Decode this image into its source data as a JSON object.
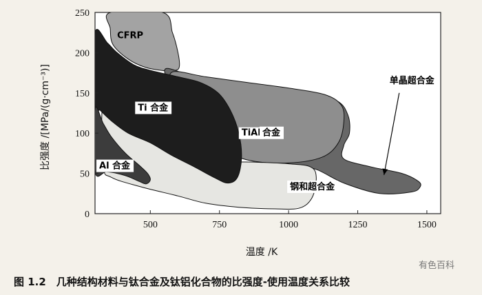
{
  "chart_data": {
    "type": "area",
    "xlabel": "温度 /K",
    "ylabel": "比强度 /[MPa/(g·cm⁻³)]",
    "xlim": [
      300,
      1550
    ],
    "ylim": [
      0,
      250
    ],
    "xticks": [
      500,
      750,
      1000,
      1250,
      1500
    ],
    "yticks": [
      0,
      50,
      100,
      150,
      200,
      250
    ],
    "grid": false,
    "regions": [
      {
        "name": "CFRP",
        "color": "#a3a3a3",
        "boundary": [
          [
            355,
            250
          ],
          [
            545,
            250
          ],
          [
            580,
            225
          ],
          [
            600,
            200
          ],
          [
            605,
            183
          ],
          [
            590,
            178
          ],
          [
            540,
            178
          ],
          [
            480,
            182
          ],
          [
            420,
            192
          ],
          [
            365,
            210
          ],
          [
            355,
            230
          ]
        ]
      },
      {
        "name": "单晶超合金",
        "color": "#676767",
        "boundary": [
          [
            555,
            180
          ],
          [
            650,
            172
          ],
          [
            800,
            165
          ],
          [
            950,
            155
          ],
          [
            1060,
            150
          ],
          [
            1175,
            140
          ],
          [
            1215,
            122
          ],
          [
            1220,
            100
          ],
          [
            1200,
            85
          ],
          [
            1200,
            68
          ],
          [
            1300,
            58
          ],
          [
            1410,
            50
          ],
          [
            1470,
            40
          ],
          [
            1475,
            33
          ],
          [
            1445,
            27
          ],
          [
            1330,
            25
          ],
          [
            1200,
            38
          ],
          [
            1100,
            55
          ],
          [
            1020,
            60
          ],
          [
            900,
            75
          ],
          [
            780,
            98
          ],
          [
            660,
            132
          ],
          [
            580,
            158
          ]
        ]
      },
      {
        "name": "TiAl 合金",
        "color": "#8e8e8e",
        "boundary": [
          [
            580,
            176
          ],
          [
            700,
            170
          ],
          [
            850,
            163
          ],
          [
            1000,
            156
          ],
          [
            1130,
            148
          ],
          [
            1190,
            135
          ],
          [
            1200,
            115
          ],
          [
            1180,
            88
          ],
          [
            1120,
            70
          ],
          [
            1000,
            63
          ],
          [
            860,
            66
          ],
          [
            760,
            80
          ],
          [
            680,
            102
          ],
          [
            610,
            130
          ],
          [
            580,
            155
          ]
        ]
      },
      {
        "name": "钢和超合金",
        "color": "#e6e6e2",
        "boundary": [
          [
            330,
            140
          ],
          [
            390,
            128
          ],
          [
            450,
            115
          ],
          [
            550,
            98
          ],
          [
            650,
            80
          ],
          [
            760,
            66
          ],
          [
            880,
            64
          ],
          [
            1000,
            62
          ],
          [
            1080,
            58
          ],
          [
            1100,
            45
          ],
          [
            1085,
            20
          ],
          [
            1040,
            7
          ],
          [
            950,
            6
          ],
          [
            820,
            8
          ],
          [
            700,
            13
          ],
          [
            600,
            22
          ],
          [
            470,
            33
          ],
          [
            360,
            45
          ],
          [
            330,
            60
          ]
        ]
      },
      {
        "name": "Ti 合金",
        "color": "#1d1d1d",
        "boundary": [
          [
            300,
            225
          ],
          [
            345,
            212
          ],
          [
            380,
            200
          ],
          [
            440,
            185
          ],
          [
            500,
            178
          ],
          [
            600,
            170
          ],
          [
            680,
            163
          ],
          [
            745,
            150
          ],
          [
            790,
            128
          ],
          [
            820,
            100
          ],
          [
            830,
            70
          ],
          [
            815,
            45
          ],
          [
            780,
            38
          ],
          [
            730,
            45
          ],
          [
            660,
            58
          ],
          [
            580,
            72
          ],
          [
            500,
            88
          ],
          [
            420,
            100
          ],
          [
            360,
            115
          ],
          [
            320,
            128
          ],
          [
            300,
            135
          ]
        ]
      },
      {
        "name": "Al 合金",
        "color": "#3c3c3c",
        "boundary": [
          [
            300,
            130
          ],
          [
            330,
            112
          ],
          [
            360,
            95
          ],
          [
            410,
            75
          ],
          [
            460,
            60
          ],
          [
            490,
            50
          ],
          [
            500,
            42
          ],
          [
            485,
            37
          ],
          [
            460,
            40
          ],
          [
            420,
            46
          ],
          [
            380,
            50
          ],
          [
            340,
            52
          ],
          [
            300,
            52
          ]
        ]
      }
    ],
    "labels": [
      {
        "text": "CFRP",
        "x": 380,
        "y": 218
      },
      {
        "text": "Ti 合金",
        "x": 455,
        "y": 128
      },
      {
        "text": "TiAl",
        "x": 830,
        "y": 97
      },
      {
        "text": "合金",
        "x": 905,
        "y": 97
      },
      {
        "text": "Al 合金",
        "x": 315,
        "y": 56
      },
      {
        "text": "钢和超合金",
        "x": 1005,
        "y": 30
      },
      {
        "text": "单晶超合金",
        "x": 1365,
        "y": 162
      }
    ]
  },
  "caption": "图 1.2　几种结构材料与钛合金及钛铝化合物的比强度-使用温度关系比较",
  "watermark": "有色百科"
}
